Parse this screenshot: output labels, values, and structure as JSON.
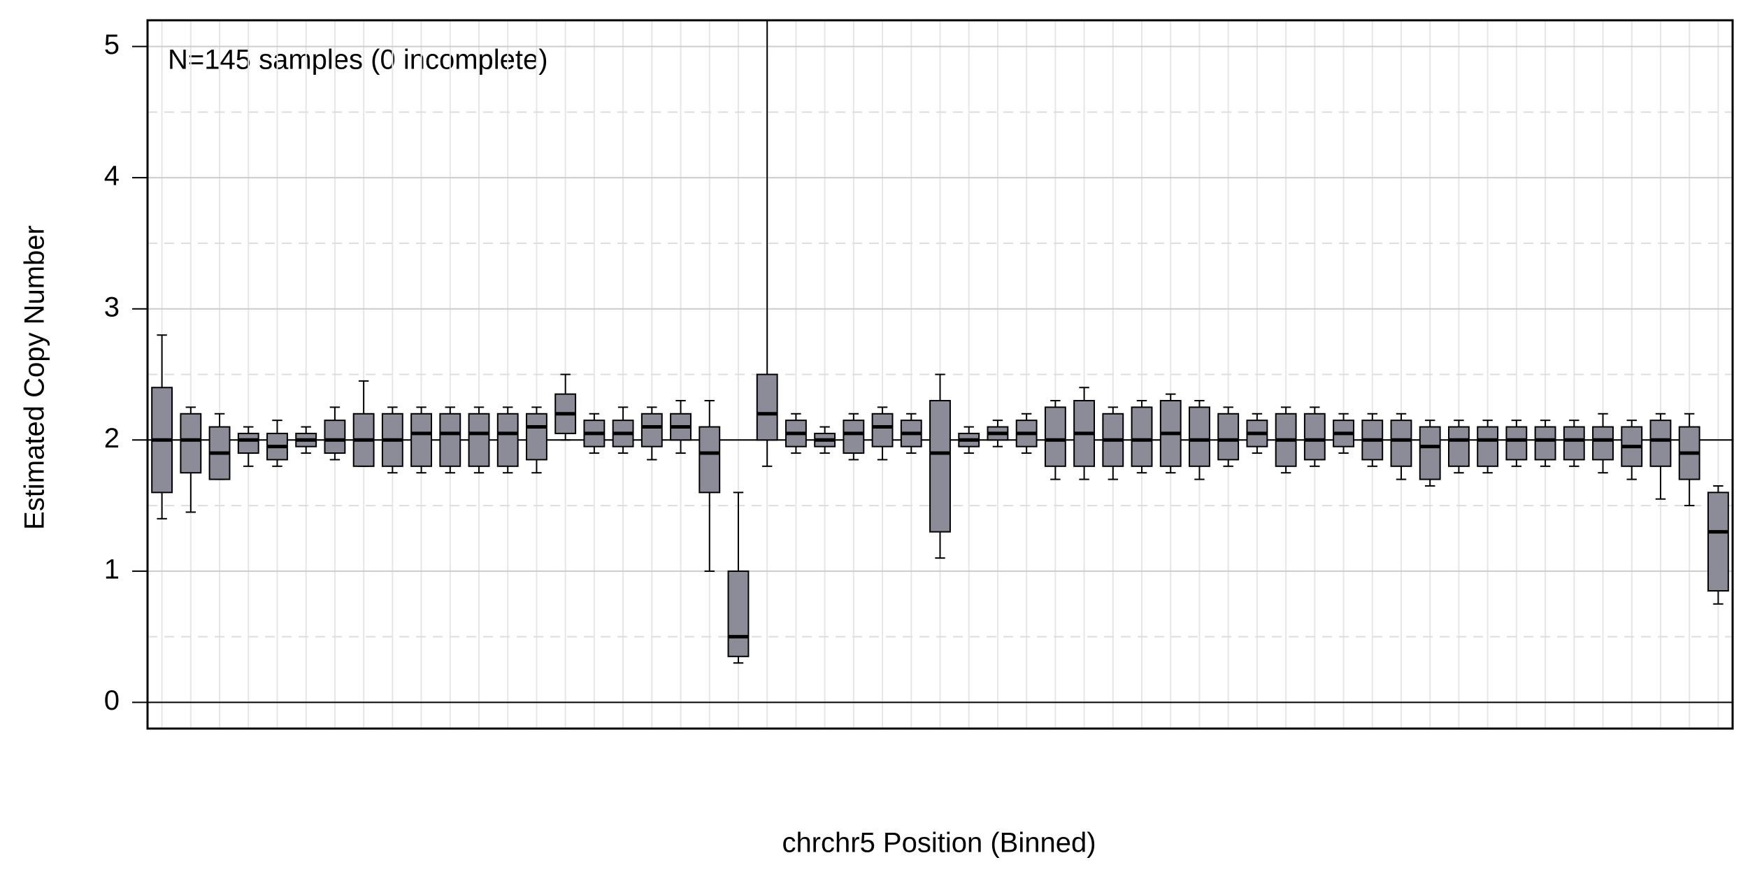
{
  "chart_data": {
    "type": "box",
    "annotation": "N=145 samples (0 incomplete)",
    "x_label": "chrchr5 Position (Binned)",
    "y_label": "Estimated Copy Number",
    "ylim": [
      -0.2,
      5.2
    ],
    "yticks": [
      0,
      1,
      2,
      3,
      4,
      5
    ],
    "minor_yticks": [
      0.5,
      1.5,
      2.5,
      3.5,
      4.5
    ],
    "reference_lines": [
      0,
      2
    ],
    "grid": true,
    "box_color": "#8c8c99",
    "median": [
      2.0,
      2.0,
      1.9,
      2.0,
      1.95,
      2.0,
      2.0,
      2.0,
      2.0,
      2.05,
      2.05,
      2.05,
      2.05,
      2.1,
      2.2,
      2.05,
      2.05,
      2.1,
      2.1,
      1.9,
      0.5,
      2.2,
      2.05,
      2.0,
      2.05,
      2.1,
      2.05,
      1.9,
      2.0,
      2.05,
      2.05,
      2.0,
      2.05,
      2.0,
      2.0,
      2.05,
      2.0,
      2.0,
      2.05,
      2.0,
      2.0,
      2.05,
      2.0,
      2.0,
      1.95,
      2.0,
      2.0,
      2.0,
      2.0,
      2.0,
      2.0,
      1.95,
      2.0,
      1.9,
      1.3
    ],
    "q1": [
      1.6,
      1.75,
      1.7,
      1.9,
      1.85,
      1.95,
      1.9,
      1.8,
      1.8,
      1.8,
      1.8,
      1.8,
      1.8,
      1.85,
      2.05,
      1.95,
      1.95,
      1.95,
      2.0,
      1.6,
      0.35,
      2.0,
      1.95,
      1.95,
      1.9,
      1.95,
      1.95,
      1.3,
      1.95,
      2.0,
      1.95,
      1.8,
      1.8,
      1.8,
      1.8,
      1.8,
      1.8,
      1.85,
      1.95,
      1.8,
      1.85,
      1.95,
      1.85,
      1.8,
      1.7,
      1.8,
      1.8,
      1.85,
      1.85,
      1.85,
      1.85,
      1.8,
      1.8,
      1.7,
      0.85
    ],
    "q3": [
      2.4,
      2.2,
      2.1,
      2.05,
      2.05,
      2.05,
      2.15,
      2.2,
      2.2,
      2.2,
      2.2,
      2.2,
      2.2,
      2.2,
      2.35,
      2.15,
      2.15,
      2.2,
      2.2,
      2.1,
      1.0,
      2.5,
      2.15,
      2.05,
      2.15,
      2.2,
      2.15,
      2.3,
      2.05,
      2.1,
      2.15,
      2.25,
      2.3,
      2.2,
      2.25,
      2.3,
      2.25,
      2.2,
      2.15,
      2.2,
      2.2,
      2.15,
      2.15,
      2.15,
      2.1,
      2.1,
      2.1,
      2.1,
      2.1,
      2.1,
      2.1,
      2.1,
      2.15,
      2.1,
      1.6
    ],
    "low": [
      1.4,
      1.45,
      1.7,
      1.8,
      1.8,
      1.9,
      1.85,
      1.8,
      1.75,
      1.75,
      1.75,
      1.75,
      1.75,
      1.75,
      2.0,
      1.9,
      1.9,
      1.85,
      1.9,
      1.0,
      0.3,
      1.8,
      1.9,
      1.9,
      1.85,
      1.85,
      1.9,
      1.1,
      1.9,
      1.95,
      1.9,
      1.7,
      1.7,
      1.7,
      1.75,
      1.75,
      1.7,
      1.8,
      1.9,
      1.75,
      1.8,
      1.9,
      1.8,
      1.7,
      1.65,
      1.75,
      1.75,
      1.8,
      1.8,
      1.8,
      1.75,
      1.7,
      1.55,
      1.5,
      0.75
    ],
    "high": [
      2.8,
      2.25,
      2.2,
      2.1,
      2.15,
      2.1,
      2.25,
      2.45,
      2.25,
      2.25,
      2.25,
      2.25,
      2.25,
      2.25,
      2.5,
      2.2,
      2.25,
      2.25,
      2.3,
      2.3,
      1.6,
      5.2,
      2.2,
      2.1,
      2.2,
      2.25,
      2.2,
      2.5,
      2.1,
      2.15,
      2.2,
      2.3,
      2.4,
      2.25,
      2.3,
      2.35,
      2.3,
      2.25,
      2.2,
      2.25,
      2.25,
      2.2,
      2.2,
      2.2,
      2.15,
      2.15,
      2.15,
      2.15,
      2.15,
      2.15,
      2.2,
      2.15,
      2.2,
      2.2,
      1.65
    ]
  }
}
